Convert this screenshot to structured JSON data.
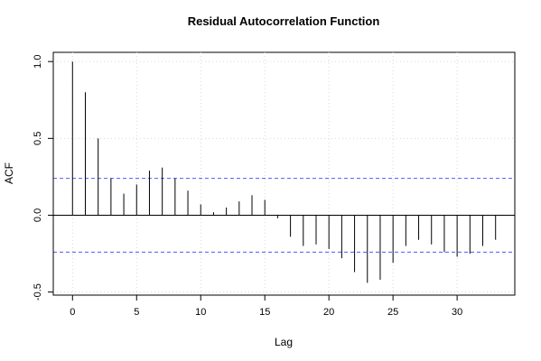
{
  "chart_data": {
    "type": "bar",
    "title": "Residual Autocorrelation Function",
    "xlabel": "Lag",
    "ylabel": "ACF",
    "xlim": [
      -1.5,
      34.5
    ],
    "ylim": [
      -0.52,
      1.06
    ],
    "x_ticks": [
      0,
      5,
      10,
      15,
      20,
      25,
      30
    ],
    "y_ticks": [
      -0.5,
      0.0,
      0.5,
      1.0
    ],
    "x_tick_labels": [
      "0",
      "5",
      "10",
      "15",
      "20",
      "25",
      "30"
    ],
    "y_tick_labels": [
      "-0.5",
      "0.0",
      "0.5",
      "1.0"
    ],
    "grid": true,
    "lags": [
      0,
      1,
      2,
      3,
      4,
      5,
      6,
      7,
      8,
      9,
      10,
      11,
      12,
      13,
      14,
      15,
      16,
      17,
      18,
      19,
      20,
      21,
      22,
      23,
      24,
      25,
      26,
      27,
      28,
      29,
      30,
      31,
      32,
      33
    ],
    "values": [
      1.0,
      0.8,
      0.5,
      0.24,
      0.14,
      0.2,
      0.29,
      0.31,
      0.24,
      0.16,
      0.07,
      0.02,
      0.05,
      0.09,
      0.13,
      0.1,
      -0.02,
      -0.14,
      -0.2,
      -0.19,
      -0.22,
      -0.28,
      -0.37,
      -0.44,
      -0.42,
      -0.31,
      -0.2,
      -0.16,
      -0.19,
      -0.24,
      -0.27,
      -0.25,
      -0.2,
      -0.16
    ],
    "confidence_band": 0.24,
    "colors": {
      "bars": "#000000",
      "confidence": "#5555ff",
      "grid": "#d8d8d8",
      "axis": "#000000"
    }
  }
}
